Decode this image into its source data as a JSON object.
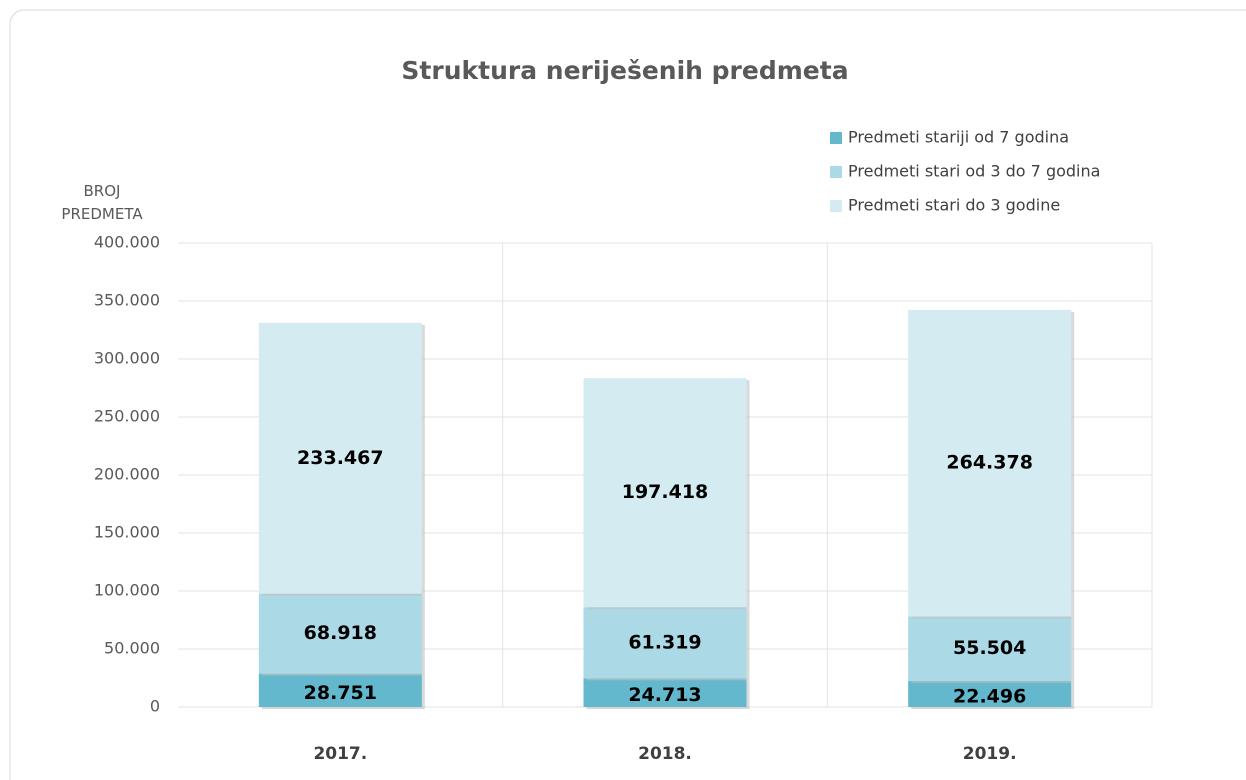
{
  "chart_data": {
    "type": "stacked_bar",
    "title": "Struktura neriješenih predmeta",
    "y_label": "BROJ PREDMETA",
    "categories": [
      "2017.",
      "2018.",
      "2019."
    ],
    "series": [
      {
        "name": "Predmeti stariji od 7 godina",
        "color": "#63b8cd",
        "values": [
          28751,
          24713,
          22496
        ],
        "value_labels": [
          "28.751",
          "24.713",
          "22.496"
        ]
      },
      {
        "name": "Predmeti stari od 3 do 7 godina",
        "color": "#acd9e6",
        "values": [
          68918,
          61319,
          55504
        ],
        "value_labels": [
          "68.918",
          "61.319",
          "55.504"
        ]
      },
      {
        "name": "Predmeti stari do 3 godine",
        "color": "#d3ebf1",
        "values": [
          233467,
          197418,
          264378
        ],
        "value_labels": [
          "233.467",
          "197.418",
          "264.378"
        ]
      }
    ],
    "ylim": [
      0,
      400000
    ],
    "yticks": [
      0,
      {
        "value": 50000,
        "label": "50.000"
      },
      {
        "value": 100000,
        "label": "100.000"
      },
      {
        "value": 150000,
        "label": "150.000"
      },
      {
        "value": 200000,
        "label": "200.000"
      },
      {
        "value": 250000,
        "label": "250.000"
      },
      {
        "value": 300000,
        "label": "300.000"
      },
      {
        "value": 350000,
        "label": "350.000"
      },
      {
        "value": 400000,
        "label": "400.000"
      }
    ],
    "grid": true,
    "legend": "top-right"
  }
}
